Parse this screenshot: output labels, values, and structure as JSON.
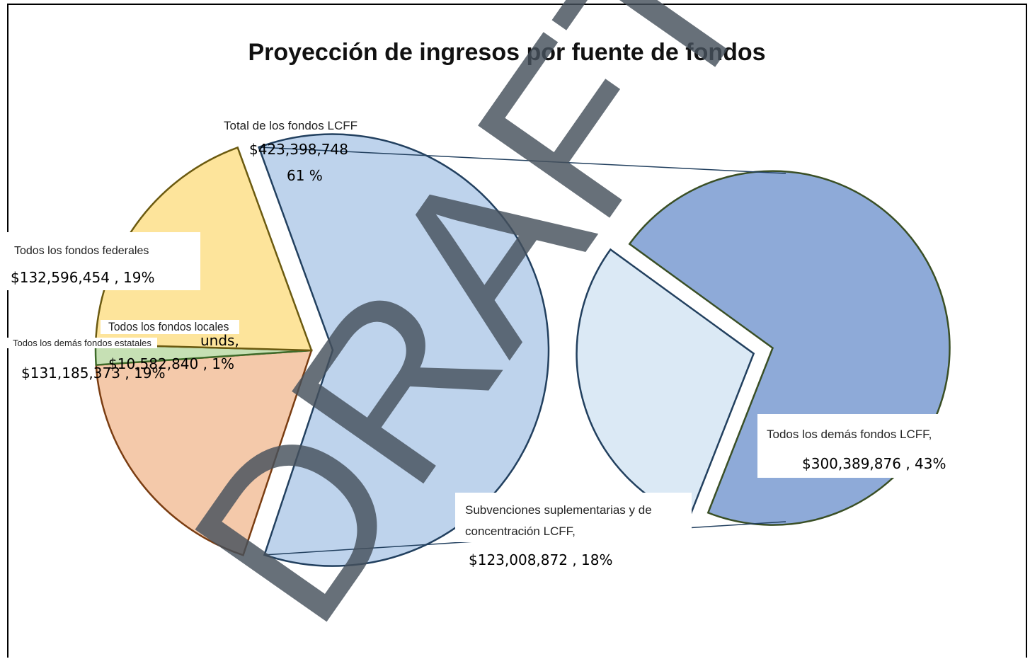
{
  "chart_data": {
    "type": "pie_of_pie",
    "title": "Proyección de ingresos por fuente de fondos",
    "watermark": "DRAFT",
    "overlap_text": "unds,",
    "main": {
      "categories": [
        "Total de los fondos LCFF",
        "Todos los demás fondos estatales",
        "Todos los fondos locales",
        "Todos los fondos federales"
      ],
      "values": [
        423398748,
        131185373,
        10582840,
        132596454
      ],
      "value_labels": [
        [
          "$423,398,748",
          "61 %"
        ],
        [
          "$131,185,373 , 19%"
        ],
        [
          "$10,582,840 , 1%"
        ],
        [
          "$132,596,454 , 19%"
        ]
      ],
      "colors": [
        "#bed3ec",
        "#f4c9aa",
        "#c6e0b4",
        "#fde49b"
      ],
      "edge_colors": [
        "#22405f",
        "#7a3d12",
        "#3e6b2a",
        "#6b5a10"
      ]
    },
    "secondary": {
      "categories": [
        "Todos los demás fondos LCFF,",
        "Subvenciones suplementarias y de concentración LCFF,"
      ],
      "values": [
        300389876,
        123008872
      ],
      "value_labels": [
        "$300,389,876 , 43%",
        "$123,008,872 , 18%"
      ],
      "colors": [
        "#8eaad8",
        "#dbe9f5"
      ],
      "edge_colors": [
        "#3a4f25",
        "#22405f"
      ]
    }
  }
}
